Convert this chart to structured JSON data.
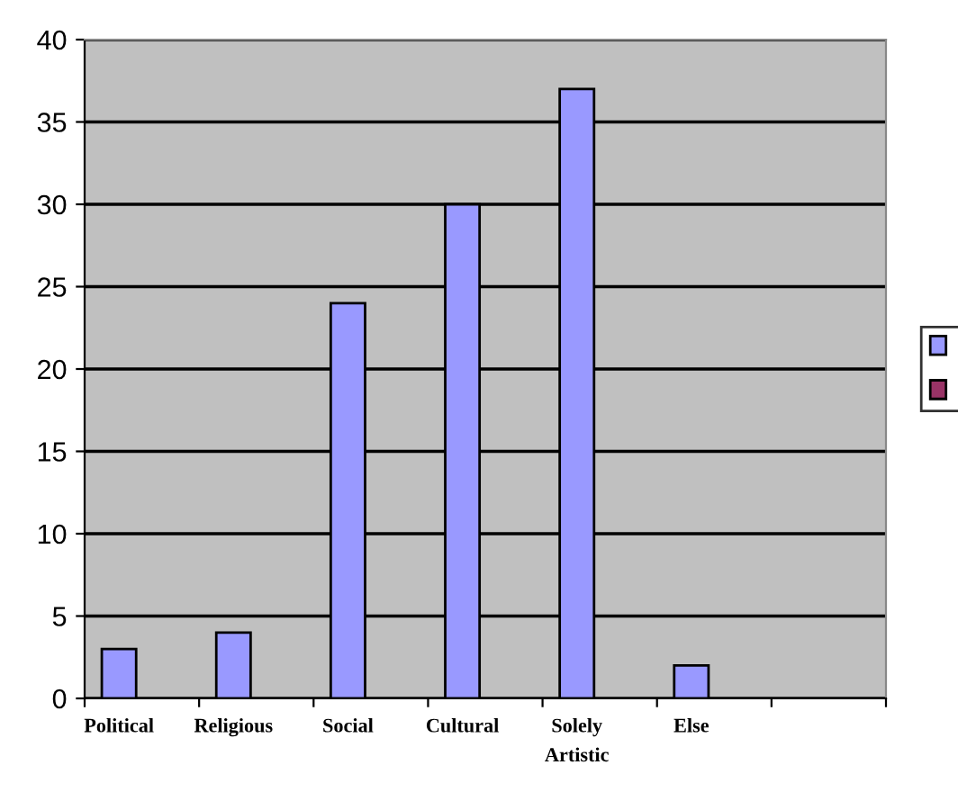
{
  "chart_data": {
    "type": "bar",
    "categories": [
      "Political",
      "Religious",
      "Social",
      "Cultural",
      "Solely\nArtistic",
      "Else",
      null
    ],
    "series": [
      {
        "color": "#9999ff",
        "values": [
          3,
          4,
          24,
          30,
          37,
          2,
          null
        ]
      },
      {
        "color": "#993366",
        "values": [
          null,
          null,
          null,
          null,
          null,
          null,
          null
        ]
      }
    ],
    "ylim": [
      0,
      40
    ],
    "yticks": [
      0,
      5,
      10,
      15,
      20,
      25,
      30,
      35,
      40
    ],
    "grid": "y"
  }
}
